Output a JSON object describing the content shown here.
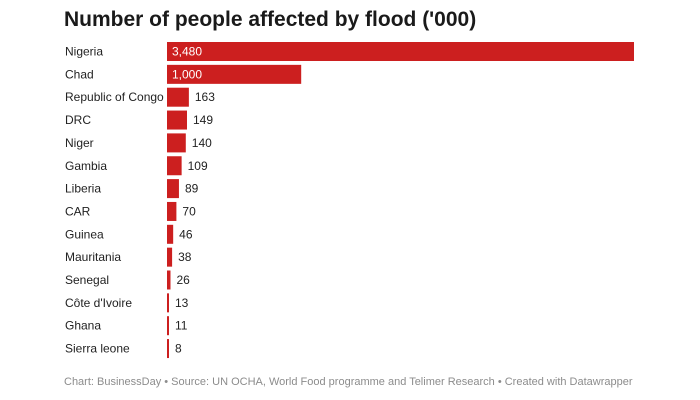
{
  "chart_data": {
    "type": "bar",
    "orientation": "horizontal",
    "title": "Number of people affected by flood ('000)",
    "categories": [
      "Nigeria",
      "Chad",
      "Republic of Congo",
      "DRC",
      "Niger",
      "Gambia",
      "Liberia",
      "CAR",
      "Guinea",
      "Mauritania",
      "Senegal",
      "Côte d'Ivoire",
      "Ghana",
      "Sierra leone"
    ],
    "values": [
      3480,
      1000,
      163,
      149,
      140,
      109,
      89,
      70,
      46,
      38,
      26,
      13,
      11,
      8
    ],
    "value_labels": [
      "3,480",
      "1,000",
      "163",
      "149",
      "140",
      "109",
      "89",
      "70",
      "46",
      "38",
      "26",
      "13",
      "11",
      "8"
    ],
    "bar_color": "#cc1f1f",
    "xlim": [
      0,
      3480
    ],
    "grid": false,
    "legend": false
  },
  "footer": {
    "text": "Chart: BusinessDay • Source: UN OCHA, World Food programme and Telimer Research • Created with Datawrapper"
  }
}
